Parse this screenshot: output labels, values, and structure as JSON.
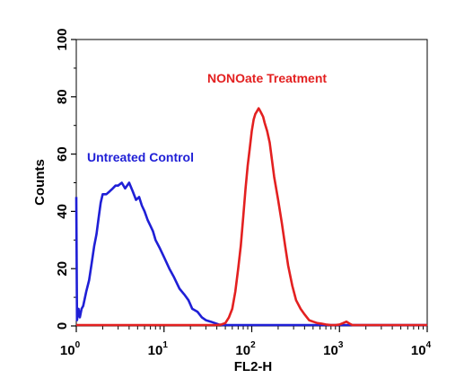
{
  "chart_data": {
    "type": "line",
    "title": "",
    "xlabel": "FL2-H",
    "ylabel": "Counts",
    "x_scale": "log",
    "xlim": [
      1,
      10000
    ],
    "ylim": [
      0,
      100
    ],
    "y_ticks": [
      "0",
      "20",
      "40",
      "60",
      "80",
      "100"
    ],
    "x_ticks": [
      {
        "value": 1,
        "base": "10",
        "exp": "0"
      },
      {
        "value": 10,
        "base": "10",
        "exp": "1"
      },
      {
        "value": 100,
        "base": "10",
        "exp": "2"
      },
      {
        "value": 1000,
        "base": "10",
        "exp": "3"
      },
      {
        "value": 10000,
        "base": "10",
        "exp": "4"
      }
    ],
    "grid": false,
    "series": [
      {
        "name": "Untreated Control",
        "color": "#1f1fd6",
        "x": [
          1.0,
          1.02,
          1.06,
          1.1,
          1.15,
          1.2,
          1.3,
          1.4,
          1.5,
          1.6,
          1.7,
          1.8,
          1.9,
          2.0,
          2.2,
          2.4,
          2.6,
          2.8,
          3.0,
          3.3,
          3.6,
          4.0,
          4.4,
          4.8,
          5.2,
          5.6,
          6.0,
          6.5,
          7.0,
          7.5,
          8.0,
          9.0,
          10.0,
          11.5,
          13.0,
          15.0,
          17.0,
          19.0,
          21.0,
          24.0,
          27.0,
          30.0,
          34.0,
          38.0,
          42.0,
          46.0,
          50.0,
          100.0,
          1000.0,
          10000.0
        ],
        "y": [
          45,
          2,
          6,
          3,
          6,
          7,
          12,
          16,
          22,
          28,
          32,
          38,
          43,
          46,
          46,
          47,
          48,
          49,
          49,
          50,
          48,
          50,
          47,
          44,
          45,
          42,
          40,
          37,
          35,
          33,
          30,
          27,
          24,
          20,
          17,
          13,
          11,
          9,
          6,
          5,
          3,
          2,
          1.5,
          1,
          0.5,
          0.3,
          0,
          0,
          0,
          0
        ]
      },
      {
        "name": "NONOate Treatment",
        "color": "#e32020",
        "x": [
          1.0,
          40.0,
          45.0,
          50.0,
          55.0,
          60.0,
          65.0,
          70.0,
          75.0,
          80.0,
          85.0,
          90.0,
          95.0,
          100.0,
          105.0,
          110.0,
          115.0,
          120.0,
          125.0,
          130.0,
          135.0,
          140.0,
          150.0,
          160.0,
          170.0,
          180.0,
          200.0,
          220.0,
          240.0,
          260.0,
          290.0,
          320.0,
          360.0,
          400.0,
          450.0,
          500.0,
          560.0,
          620.0,
          700.0,
          800.0,
          900.0,
          1000.0,
          1100.0,
          1200.0,
          1300.0,
          1400.0,
          1600.0,
          10000.0
        ],
        "y": [
          0,
          0,
          0.5,
          1,
          3,
          6,
          12,
          20,
          28,
          38,
          48,
          56,
          62,
          68,
          72,
          74,
          75,
          76,
          75,
          74,
          73,
          71,
          68,
          64,
          58,
          52,
          44,
          36,
          28,
          21,
          14,
          9,
          6,
          4,
          2,
          1.5,
          1,
          0.8,
          0.5,
          0.3,
          0.2,
          0.5,
          1,
          1.5,
          0.8,
          0.3,
          0,
          0
        ]
      }
    ],
    "annotations": [
      {
        "text": "Untreated Control",
        "color": "#1f1fd6"
      },
      {
        "text": "NONOate Treatment",
        "color": "#e32020"
      }
    ]
  }
}
